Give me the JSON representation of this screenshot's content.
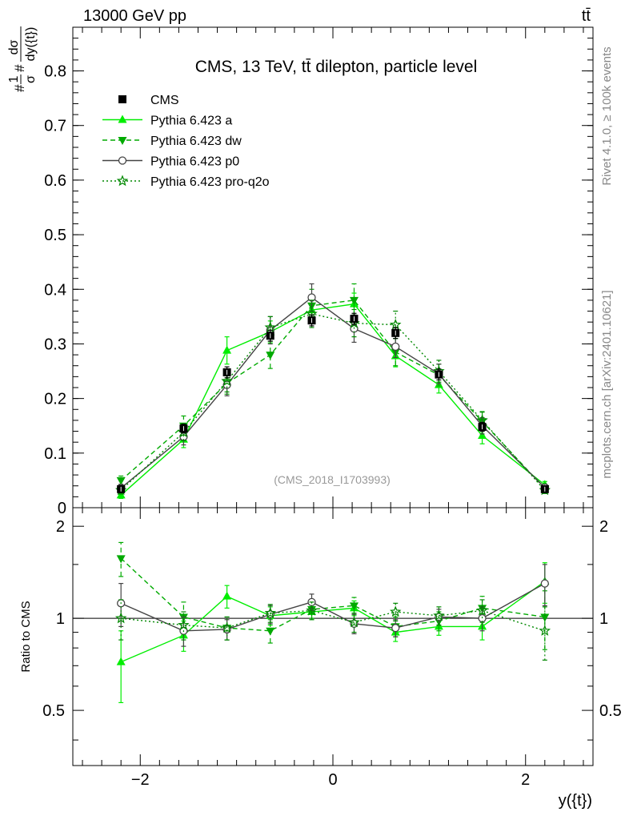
{
  "header": {
    "energy_label": "13000 GeV pp",
    "process_label": "tt̄"
  },
  "plot_title": "CMS, 13 TeV, tt̄ dilepton, particle level",
  "analysis_label": "(CMS_2018_I1703993)",
  "side_text": {
    "rivet": "Rivet 4.1.0, ≥ 100k events",
    "mcplots": "mcplots.cern.ch [arXiv:2401.10621]"
  },
  "ylabel_main": "#1/σ # dσ/dy({t})",
  "ylabel_main_parts": {
    "prefix": "#",
    "num1": "1",
    "sym": "#",
    "num2": "dσ",
    "den1": "σ",
    "den2": "dy({t})"
  },
  "ylabel_ratio": "Ratio to CMS",
  "xlabel": "y({t})",
  "colors": {
    "data": "#000000",
    "a": "#00ee00",
    "dw": "#00aa00",
    "p0": "#444444",
    "proq2o": "#008800",
    "frame": "#000000",
    "label_gray": "#888888"
  },
  "legend": [
    {
      "key": "data",
      "label": "CMS"
    },
    {
      "key": "a",
      "label": "Pythia 6.423 a"
    },
    {
      "key": "dw",
      "label": "Pythia 6.423 dw"
    },
    {
      "key": "p0",
      "label": "Pythia 6.423 p0"
    },
    {
      "key": "proq2o",
      "label": "Pythia 6.423 pro-q2o"
    }
  ],
  "chart_data": {
    "type": "line",
    "x": [
      -2.2,
      -1.55,
      -1.1,
      -0.65,
      -0.22,
      0.22,
      0.65,
      1.1,
      1.55,
      2.2
    ],
    "xlim": [
      -2.7,
      2.7
    ],
    "ylim_main": [
      0,
      0.88
    ],
    "ylim_ratio": [
      0.33,
      2.3
    ],
    "x_ticks": [
      -2,
      0,
      2
    ],
    "y_ticks_main": [
      0,
      0.1,
      0.2,
      0.3,
      0.4,
      0.5,
      0.6,
      0.7,
      0.8
    ],
    "y_ticks_ratio": [
      0.5,
      1,
      2
    ],
    "series": [
      {
        "name": "CMS",
        "key": "data",
        "marker": "square",
        "values": [
          0.034,
          0.145,
          0.248,
          0.315,
          0.343,
          0.346,
          0.32,
          0.244,
          0.148,
          0.034
        ],
        "errors": [
          0.004,
          0.008,
          0.01,
          0.01,
          0.01,
          0.01,
          0.01,
          0.01,
          0.008,
          0.004
        ],
        "ratio": [
          1,
          1,
          1,
          1,
          1,
          1,
          1,
          1,
          1,
          1
        ]
      },
      {
        "name": "Pythia 6.423 a",
        "key": "a",
        "marker": "triangle-up",
        "dash": "",
        "values": [
          0.023,
          0.125,
          0.288,
          0.322,
          0.362,
          0.373,
          0.278,
          0.225,
          0.132,
          0.042
        ],
        "errors": [
          0.006,
          0.015,
          0.025,
          0.02,
          0.02,
          0.02,
          0.02,
          0.015,
          0.015,
          0.006
        ],
        "ratio": [
          0.72,
          0.88,
          1.18,
          1.02,
          1.05,
          1.08,
          0.9,
          0.94,
          0.94,
          1.32
        ],
        "ratio_errors": [
          0.19,
          0.1,
          0.1,
          0.07,
          0.06,
          0.06,
          0.06,
          0.06,
          0.09,
          0.2
        ]
      },
      {
        "name": "Pythia 6.423 dw",
        "key": "dw",
        "marker": "triangle-down",
        "dash": "6,4",
        "values": [
          0.05,
          0.15,
          0.228,
          0.28,
          0.37,
          0.38,
          0.285,
          0.243,
          0.158,
          0.035
        ],
        "errors": [
          0.008,
          0.018,
          0.02,
          0.025,
          0.03,
          0.03,
          0.025,
          0.02,
          0.018,
          0.008
        ],
        "ratio": [
          1.57,
          1.01,
          0.93,
          0.91,
          1.07,
          1.1,
          0.94,
          0.98,
          1.08,
          1.01
        ],
        "ratio_errors": [
          0.2,
          0.12,
          0.08,
          0.08,
          0.07,
          0.07,
          0.07,
          0.07,
          0.1,
          0.22
        ]
      },
      {
        "name": "Pythia 6.423 p0",
        "key": "p0",
        "marker": "circle-open",
        "dash": "",
        "values": [
          0.036,
          0.13,
          0.225,
          0.325,
          0.385,
          0.328,
          0.295,
          0.245,
          0.15,
          0.037
        ],
        "errors": [
          0.007,
          0.015,
          0.02,
          0.025,
          0.025,
          0.025,
          0.02,
          0.018,
          0.015,
          0.006
        ],
        "ratio": [
          1.12,
          0.91,
          0.92,
          1.03,
          1.13,
          0.96,
          0.93,
          1.01,
          1.0,
          1.3
        ],
        "ratio_errors": [
          0.18,
          0.1,
          0.07,
          0.07,
          0.07,
          0.07,
          0.06,
          0.06,
          0.09,
          0.2
        ]
      },
      {
        "name": "Pythia 6.423 pro-q2o",
        "key": "proq2o",
        "marker": "star-open",
        "dash": "2,3",
        "values": [
          0.032,
          0.138,
          0.232,
          0.33,
          0.355,
          0.338,
          0.335,
          0.25,
          0.16,
          0.032
        ],
        "errors": [
          0.007,
          0.015,
          0.02,
          0.02,
          0.025,
          0.025,
          0.025,
          0.02,
          0.015,
          0.006
        ],
        "ratio": [
          1.0,
          0.95,
          0.93,
          1.04,
          1.06,
          0.97,
          1.05,
          1.02,
          1.06,
          0.91
        ],
        "ratio_errors": [
          0.15,
          0.1,
          0.08,
          0.07,
          0.07,
          0.07,
          0.07,
          0.07,
          0.09,
          0.18
        ]
      }
    ]
  }
}
